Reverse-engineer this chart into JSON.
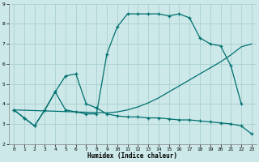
{
  "xlabel": "Humidex (Indice chaleur)",
  "bg_color": "#cce8e8",
  "grid_color": "#aacfcf",
  "line_color": "#007070",
  "xlim": [
    -0.5,
    23.5
  ],
  "ylim": [
    2,
    9
  ],
  "xticks": [
    0,
    1,
    2,
    3,
    4,
    5,
    6,
    7,
    8,
    9,
    10,
    11,
    12,
    13,
    14,
    15,
    16,
    17,
    18,
    19,
    20,
    21,
    22,
    23
  ],
  "yticks": [
    2,
    3,
    4,
    5,
    6,
    7,
    8,
    9
  ],
  "line1_x": [
    0,
    1,
    2,
    3,
    4,
    5,
    6,
    7,
    8,
    9,
    10,
    11,
    12,
    13,
    14,
    15,
    16,
    17,
    18,
    19,
    20,
    21,
    22
  ],
  "line1_y": [
    3.7,
    3.3,
    2.9,
    3.7,
    4.6,
    3.7,
    3.6,
    3.5,
    3.5,
    6.5,
    7.85,
    8.5,
    8.5,
    8.5,
    8.5,
    8.4,
    8.5,
    8.3,
    7.3,
    7.0,
    6.9,
    5.9,
    4.0
  ],
  "line2_x": [
    0,
    1,
    2,
    3,
    4,
    5,
    6,
    7,
    8,
    9,
    10,
    11,
    12,
    13,
    14,
    15,
    16,
    17,
    18,
    19,
    20,
    21,
    22,
    23
  ],
  "line2_y": [
    3.7,
    3.3,
    2.9,
    3.7,
    4.6,
    5.4,
    5.5,
    4.0,
    3.8,
    3.5,
    3.4,
    3.35,
    3.35,
    3.3,
    3.3,
    3.25,
    3.2,
    3.2,
    3.15,
    3.1,
    3.05,
    3.0,
    2.9,
    2.5
  ],
  "line3_x": [
    0,
    6,
    9,
    10,
    11,
    12,
    13,
    14,
    15,
    16,
    17,
    18,
    19,
    20,
    21,
    22,
    23
  ],
  "line3_y": [
    3.7,
    3.6,
    3.55,
    3.6,
    3.7,
    3.85,
    4.05,
    4.3,
    4.6,
    4.9,
    5.2,
    5.5,
    5.8,
    6.1,
    6.45,
    6.85,
    7.0
  ]
}
